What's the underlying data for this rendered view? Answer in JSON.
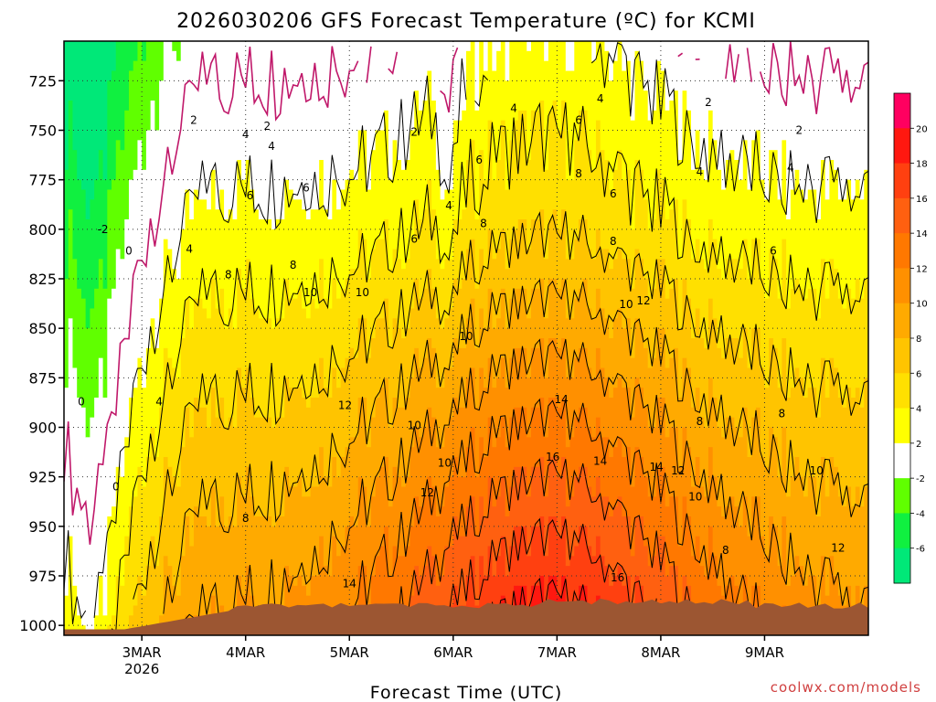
{
  "chart_data": {
    "type": "heatmap",
    "title": "2026030206 GFS Forecast Temperature (ºC) for KCMI",
    "xlabel": "Forecast Time (UTC)",
    "ylabel": "",
    "x_ticks": [
      "3MAR",
      "4MAR",
      "5MAR",
      "6MAR",
      "7MAR",
      "8MAR",
      "9MAR"
    ],
    "x_tick_year": "2026",
    "x_tick_hours": [
      18,
      42,
      66,
      90,
      114,
      138,
      162
    ],
    "xlim_hours": [
      0,
      186
    ],
    "y_ticks": [
      "725",
      "750",
      "775",
      "800",
      "825",
      "850",
      "875",
      "900",
      "925",
      "950",
      "975",
      "1000"
    ],
    "y_values": [
      725,
      750,
      775,
      800,
      825,
      850,
      875,
      900,
      925,
      950,
      975,
      1000
    ],
    "ylim": [
      705,
      1005
    ],
    "grid": true,
    "colorbar": {
      "levels": [
        -8,
        -6,
        -4,
        -2,
        2,
        4,
        6,
        8,
        10,
        12,
        14,
        16,
        18,
        20,
        22
      ],
      "tick_labels": [
        "20",
        "18",
        "16",
        "14",
        "12",
        "10",
        "8",
        "6",
        "4",
        "2",
        "-2",
        "-4",
        "-6"
      ],
      "tick_values": [
        20,
        18,
        16,
        14,
        12,
        10,
        8,
        6,
        4,
        2,
        -2,
        -4,
        -6
      ],
      "colors": [
        "#00e878",
        "#10f040",
        "#60ff00",
        "#ffffff",
        "#ffff00",
        "#ffe000",
        "#ffc400",
        "#ffaa00",
        "#ff9000",
        "#ff7800",
        "#ff6010",
        "#ff4010",
        "#ff1810",
        "#ff0060"
      ]
    },
    "contour_labels": [
      {
        "text": "2",
        "hour": 30,
        "p": 745
      },
      {
        "text": "4",
        "hour": 42,
        "p": 752
      },
      {
        "text": "2",
        "hour": 47,
        "p": 748
      },
      {
        "text": "4",
        "hour": 48,
        "p": 758
      },
      {
        "text": "6",
        "hour": 43,
        "p": 783
      },
      {
        "text": "6",
        "hour": 56,
        "p": 779
      },
      {
        "text": "4",
        "hour": 29,
        "p": 810
      },
      {
        "text": "8",
        "hour": 38,
        "p": 823
      },
      {
        "text": "8",
        "hour": 53,
        "p": 818
      },
      {
        "text": "10",
        "hour": 57,
        "p": 832
      },
      {
        "text": "10",
        "hour": 69,
        "p": 832
      },
      {
        "text": "2",
        "hour": 81,
        "p": 751
      },
      {
        "text": "4",
        "hour": 104,
        "p": 739
      },
      {
        "text": "6",
        "hour": 96,
        "p": 765
      },
      {
        "text": "4",
        "hour": 89,
        "p": 788
      },
      {
        "text": "8",
        "hour": 97,
        "p": 797
      },
      {
        "text": "6",
        "hour": 81,
        "p": 805
      },
      {
        "text": "4",
        "hour": 124,
        "p": 734
      },
      {
        "text": "6",
        "hour": 119,
        "p": 745
      },
      {
        "text": "8",
        "hour": 119,
        "p": 772
      },
      {
        "text": "6",
        "hour": 127,
        "p": 782
      },
      {
        "text": "8",
        "hour": 127,
        "p": 806
      },
      {
        "text": "2",
        "hour": 149,
        "p": 736
      },
      {
        "text": "4",
        "hour": 147,
        "p": 771
      },
      {
        "text": "2",
        "hour": 170,
        "p": 750
      },
      {
        "text": "4",
        "hour": 168,
        "p": 769
      },
      {
        "text": "6",
        "hour": 164,
        "p": 811
      },
      {
        "text": "12",
        "hour": 134,
        "p": 836
      },
      {
        "text": "10",
        "hour": 130,
        "p": 838
      },
      {
        "text": "10",
        "hour": 93,
        "p": 854
      },
      {
        "text": "4",
        "hour": 22,
        "p": 887
      },
      {
        "text": "0",
        "hour": 15,
        "p": 811
      },
      {
        "text": "-2",
        "hour": 9,
        "p": 800
      },
      {
        "text": "0",
        "hour": 4,
        "p": 887
      },
      {
        "text": "0",
        "hour": 12,
        "p": 930
      },
      {
        "text": "12",
        "hour": 65,
        "p": 889
      },
      {
        "text": "10",
        "hour": 81,
        "p": 899
      },
      {
        "text": "10",
        "hour": 88,
        "p": 918
      },
      {
        "text": "12",
        "hour": 84,
        "p": 933
      },
      {
        "text": "8",
        "hour": 42,
        "p": 946
      },
      {
        "text": "14",
        "hour": 66,
        "p": 979
      },
      {
        "text": "14",
        "hour": 115,
        "p": 886
      },
      {
        "text": "16",
        "hour": 113,
        "p": 915
      },
      {
        "text": "14",
        "hour": 124,
        "p": 917
      },
      {
        "text": "14",
        "hour": 137,
        "p": 920
      },
      {
        "text": "12",
        "hour": 142,
        "p": 922
      },
      {
        "text": "10",
        "hour": 146,
        "p": 935
      },
      {
        "text": "8",
        "hour": 147,
        "p": 897
      },
      {
        "text": "8",
        "hour": 166,
        "p": 893
      },
      {
        "text": "8",
        "hour": 153,
        "p": 962
      },
      {
        "text": "10",
        "hour": 174,
        "p": 922
      },
      {
        "text": "12",
        "hour": 179,
        "p": 961
      },
      {
        "text": "16",
        "hour": 128,
        "p": 976
      }
    ],
    "ground_surface_pressure": 990
  },
  "credit": "coolwx.com/models",
  "colors": {
    "ground": "#9c5632",
    "zero_line": "#c0186a",
    "contour": "#000000"
  }
}
